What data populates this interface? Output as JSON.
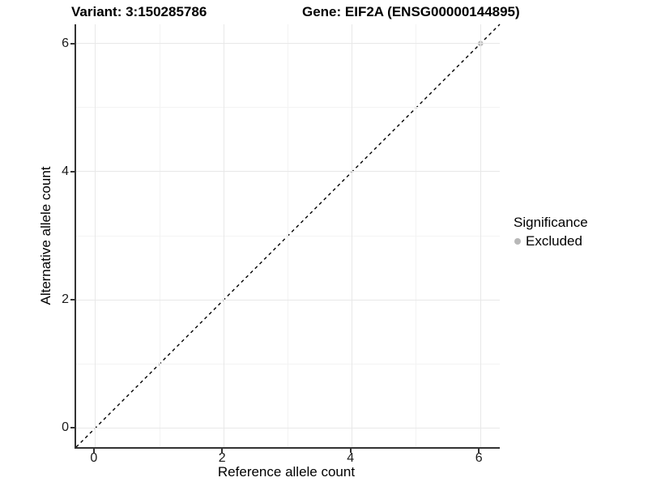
{
  "chart_data": {
    "type": "scatter",
    "title_left": "Variant: 3:150285786",
    "title_right": "Gene: EIF2A (ENSG00000144895)",
    "xlabel": "Reference allele count",
    "ylabel": "Alternative allele count",
    "xlim": [
      -0.3,
      6.3
    ],
    "ylim": [
      -0.3,
      6.3
    ],
    "x_major_ticks": [
      0,
      2,
      4,
      6
    ],
    "x_minor_ticks": [
      1,
      3,
      5
    ],
    "y_major_ticks": [
      0,
      2,
      4,
      6
    ],
    "y_minor_ticks": [
      1,
      3,
      5
    ],
    "grid": "on",
    "identity_line": {
      "slope": 1,
      "intercept": 0,
      "linestyle": "dashed",
      "color": "#000000"
    },
    "series": [
      {
        "name": "Excluded",
        "color": "#b8b8b8",
        "points": [
          {
            "x": 6,
            "y": 6
          }
        ]
      }
    ],
    "legend": {
      "title": "Significance",
      "position": "right",
      "items": [
        {
          "label": "Excluded",
          "color": "#b8b8b8"
        }
      ]
    }
  },
  "colors": {
    "background": "#ffffff",
    "grid_major": "#e8e8e8",
    "grid_minor": "#f3f3f3",
    "axis_line": "#333333",
    "point": "#b8b8b8",
    "identity_line": "#000000"
  }
}
